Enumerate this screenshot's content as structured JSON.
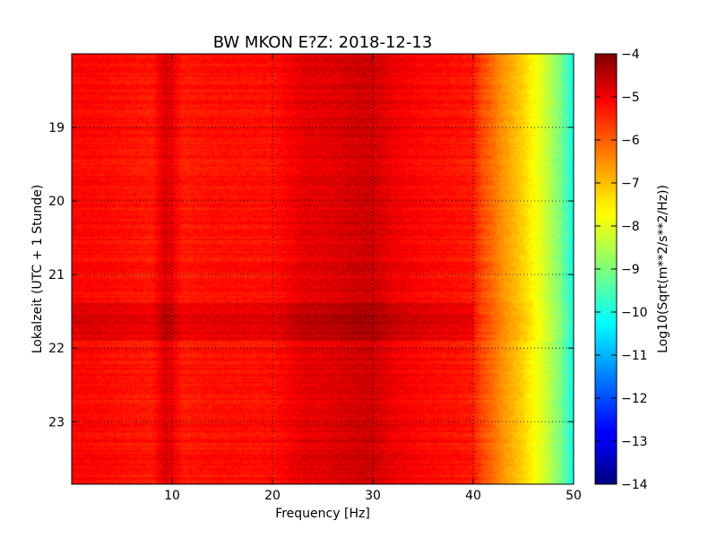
{
  "chart_data": {
    "type": "heatmap",
    "title": "BW MKON E?Z: 2018-12-13",
    "xlabel": "Frequency [Hz]",
    "ylabel": "Lokalzeit (UTC + 1 Stunde)",
    "xlim": [
      0,
      50
    ],
    "ylim": [
      23.85,
      18.0
    ],
    "x_ticks": [
      10,
      20,
      30,
      40,
      50
    ],
    "y_ticks": [
      19,
      20,
      21,
      22,
      23
    ],
    "grid": true,
    "colorbar": {
      "label": "Log10(Sqrt(m**2/s**2/Hz))",
      "range": [
        -14,
        -4
      ],
      "ticks": [
        -4,
        -5,
        -6,
        -7,
        -8,
        -9,
        -10,
        -11,
        -12,
        -13,
        -14
      ],
      "colormap": "jet"
    },
    "frequency_profile": {
      "frequency_hz": [
        0,
        2,
        5,
        8,
        9.3,
        11,
        14,
        17,
        20,
        23.3,
        25,
        27,
        29,
        30,
        32,
        35,
        38,
        40,
        41,
        42,
        43,
        44,
        45,
        46,
        47,
        48,
        49,
        50
      ],
      "level": [
        -5.3,
        -5.3,
        -5.4,
        -5.5,
        -4.9,
        -5.5,
        -5.4,
        -5.4,
        -5.4,
        -5.0,
        -5.0,
        -4.9,
        -4.8,
        -4.8,
        -5.1,
        -5.3,
        -5.4,
        -5.5,
        -6.0,
        -6.3,
        -6.7,
        -7.0,
        -7.3,
        -7.7,
        -8.1,
        -8.6,
        -9.2,
        -10.0
      ]
    },
    "enhanced_band": {
      "time_from": 21.4,
      "time_to": 21.9,
      "level_increase": 0.4
    }
  }
}
